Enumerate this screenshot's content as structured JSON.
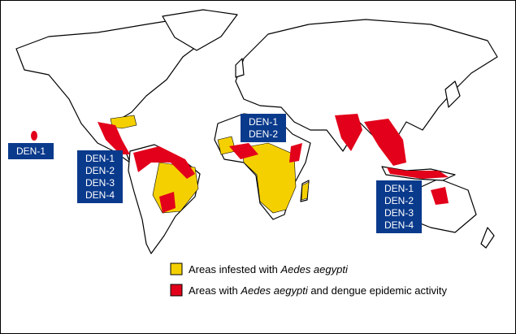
{
  "labels": [
    {
      "lines": [
        "DEN-1"
      ]
    },
    {
      "lines": [
        "DEN-1",
        "DEN-2",
        "DEN-3",
        "DEN-4"
      ]
    },
    {
      "lines": [
        "DEN-1",
        "DEN-2"
      ]
    },
    {
      "lines": [
        "DEN-1",
        "DEN-2",
        "DEN-3",
        "DEN-4"
      ]
    }
  ],
  "legend": [
    {
      "color": "#f5d000",
      "parts": [
        {
          "text": "Areas infested with "
        },
        {
          "text": "Aedes aegypti",
          "italic": true
        }
      ]
    },
    {
      "color": "#e2001a",
      "parts": [
        {
          "text": "Areas with "
        },
        {
          "text": "Aedes aegypti",
          "italic": true
        },
        {
          "text": " and dengue epidemic activity"
        }
      ]
    }
  ]
}
